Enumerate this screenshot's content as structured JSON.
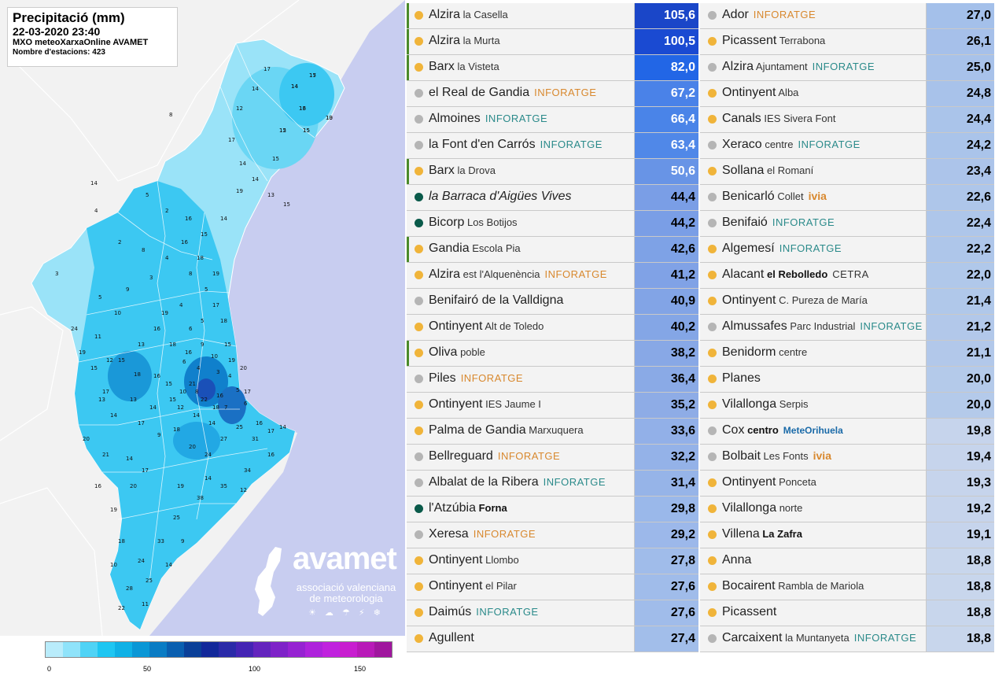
{
  "map": {
    "title": "Precipitació (mm)",
    "date": "22-03-2020 23:40",
    "source": "MXO meteoXarxaOnline AVAMET",
    "stations_count": "Nombre d'estacions: 423",
    "brand_name": "avamet",
    "brand_sub1": "associació valenciana",
    "brand_sub2": "de meteorologia",
    "brand_icons": "☀ ☁ ☂ ⚡ ❄",
    "legend_colors": [
      "#b9ecfb",
      "#8fe3fa",
      "#4fd3f6",
      "#1ec6f2",
      "#0fb1e6",
      "#0a97d6",
      "#0a7cc4",
      "#0a5fb0",
      "#0a3f98",
      "#12289a",
      "#2a2aa8",
      "#4424b4",
      "#6424be",
      "#7e22c8",
      "#9622d2",
      "#ae22dc",
      "#c022de",
      "#c81ed0",
      "#b81ab8",
      "#a0169e"
    ],
    "legend_ticks": [
      "0",
      "50",
      "100",
      "150"
    ],
    "values": [
      "17",
      "14",
      "16",
      "15",
      "15",
      "10",
      "15",
      "14",
      "15",
      "8",
      "14",
      "5",
      "2",
      "4",
      "2",
      "3",
      "5",
      "3",
      "4",
      "8",
      "4",
      "5",
      "5",
      "6",
      "9",
      "10",
      "6",
      "4",
      "3",
      "4",
      "5",
      "6",
      "7",
      "8",
      "10",
      "15",
      "16",
      "18",
      "15",
      "17",
      "14",
      "17",
      "9",
      "18",
      "20",
      "24",
      "27",
      "25",
      "31",
      "17",
      "14",
      "34",
      "35",
      "38",
      "25",
      "33",
      "24",
      "28",
      "25",
      "22",
      "20",
      "17",
      "19",
      "21",
      "19",
      "14",
      "12",
      "16",
      "9",
      "14",
      "18",
      "14",
      "14",
      "12",
      "18",
      "16",
      "13",
      "19",
      "16",
      "15",
      "24",
      "19",
      "15",
      "13",
      "20",
      "14",
      "16",
      "18",
      "10",
      "11",
      "14",
      "17",
      "12",
      "17",
      "14",
      "19",
      "13",
      "14",
      "15",
      "16",
      "17",
      "18",
      "19",
      "20",
      "21",
      "22",
      "16",
      "15",
      "14",
      "13",
      "12",
      "11",
      "10",
      "9",
      "8",
      "16",
      "18",
      "19",
      "17",
      "16",
      "15",
      "14",
      "13",
      "12",
      "15",
      "13"
    ]
  },
  "table": {
    "left": [
      {
        "name": "Alzira",
        "sub": "la Casella",
        "tag": "",
        "tag_color": "",
        "dot": "#f0b43a",
        "value": "105,6",
        "bg": "#1a46c8",
        "fg": "#ffffff",
        "accent": true,
        "italic": false,
        "sub_bold": false
      },
      {
        "name": "Alzira",
        "sub": "la Murta",
        "tag": "",
        "tag_color": "",
        "dot": "#f0b43a",
        "value": "100,5",
        "bg": "#1a4ad2",
        "fg": "#ffffff",
        "accent": true,
        "italic": false,
        "sub_bold": false
      },
      {
        "name": "Barx",
        "sub": "la Visteta",
        "tag": "",
        "tag_color": "",
        "dot": "#f0b43a",
        "value": "82,0",
        "bg": "#2266e6",
        "fg": "#ffffff",
        "accent": true,
        "italic": false,
        "sub_bold": false
      },
      {
        "name": "el Real de Gandia",
        "sub": "",
        "tag": "INFORATGE",
        "tag_color": "#d8882e",
        "dot": "#b5b5b5",
        "value": "67,2",
        "bg": "#4a82e8",
        "fg": "#ffffff",
        "accent": false,
        "italic": false,
        "sub_bold": false
      },
      {
        "name": "Almoines",
        "sub": "",
        "tag": "INFORATGE",
        "tag_color": "#2a8a8a",
        "dot": "#b5b5b5",
        "value": "66,4",
        "bg": "#4a84e8",
        "fg": "#ffffff",
        "accent": false,
        "italic": false,
        "sub_bold": false
      },
      {
        "name": "la Font d'en Carrós",
        "sub": "",
        "tag": "INFORATGE",
        "tag_color": "#2a8a8a",
        "dot": "#b5b5b5",
        "value": "63,4",
        "bg": "#5088e8",
        "fg": "#ffffff",
        "accent": false,
        "italic": false,
        "sub_bold": false
      },
      {
        "name": "Barx",
        "sub": "la Drova",
        "tag": "",
        "tag_color": "",
        "dot": "#f0b43a",
        "value": "50,6",
        "bg": "#6894e6",
        "fg": "#ffffff",
        "accent": true,
        "italic": false,
        "sub_bold": false
      },
      {
        "name": "la Barraca d'Aigües Vives",
        "sub": "",
        "tag": "",
        "tag_color": "",
        "dot": "#0a5a4a",
        "value": "44,4",
        "bg": "#7a9ee6",
        "fg": "#000000",
        "accent": false,
        "italic": true,
        "sub_bold": false
      },
      {
        "name": "Bicorp",
        "sub": "Los Botijos",
        "tag": "",
        "tag_color": "",
        "dot": "#0a5a4a",
        "value": "44,2",
        "bg": "#7a9ee6",
        "fg": "#000000",
        "accent": false,
        "italic": false,
        "sub_bold": false
      },
      {
        "name": "Gandia",
        "sub": "Escola Pia",
        "tag": "",
        "tag_color": "",
        "dot": "#f0b43a",
        "value": "42,6",
        "bg": "#7ea2e6",
        "fg": "#000000",
        "accent": true,
        "italic": false,
        "sub_bold": false
      },
      {
        "name": "Alzira",
        "sub": "est l'Alquenència",
        "tag": "INFORATGE",
        "tag_color": "#d8882e",
        "dot": "#f0b43a",
        "value": "41,2",
        "bg": "#80a2e6",
        "fg": "#000000",
        "accent": false,
        "italic": false,
        "sub_bold": false
      },
      {
        "name": "Benifairó de la Valldigna",
        "sub": "",
        "tag": "",
        "tag_color": "",
        "dot": "#b5b5b5",
        "value": "40,9",
        "bg": "#82a4e6",
        "fg": "#000000",
        "accent": false,
        "italic": false,
        "sub_bold": false
      },
      {
        "name": "Ontinyent",
        "sub": "Alt de Toledo",
        "tag": "",
        "tag_color": "",
        "dot": "#f0b43a",
        "value": "40,2",
        "bg": "#84a6e6",
        "fg": "#000000",
        "accent": false,
        "italic": false,
        "sub_bold": false
      },
      {
        "name": "Oliva",
        "sub": "poble",
        "tag": "",
        "tag_color": "",
        "dot": "#f0b43a",
        "value": "38,2",
        "bg": "#88a8e6",
        "fg": "#000000",
        "accent": true,
        "italic": false,
        "sub_bold": false
      },
      {
        "name": "Piles",
        "sub": "",
        "tag": "INFORATGE",
        "tag_color": "#d8882e",
        "dot": "#b5b5b5",
        "value": "36,4",
        "bg": "#8aaae6",
        "fg": "#000000",
        "accent": false,
        "italic": false,
        "sub_bold": false
      },
      {
        "name": "Ontinyent",
        "sub": "IES Jaume I",
        "tag": "",
        "tag_color": "",
        "dot": "#f0b43a",
        "value": "35,2",
        "bg": "#8eace6",
        "fg": "#000000",
        "accent": false,
        "italic": false,
        "sub_bold": false
      },
      {
        "name": "Palma de Gandia",
        "sub": "Marxuquera",
        "tag": "",
        "tag_color": "",
        "dot": "#f0b43a",
        "value": "33,6",
        "bg": "#92b0e8",
        "fg": "#000000",
        "accent": false,
        "italic": false,
        "sub_bold": false
      },
      {
        "name": "Bellreguard",
        "sub": "",
        "tag": "INFORATGE",
        "tag_color": "#d8882e",
        "dot": "#b5b5b5",
        "value": "32,2",
        "bg": "#94b2e8",
        "fg": "#000000",
        "accent": false,
        "italic": false,
        "sub_bold": false
      },
      {
        "name": "Albalat de la Ribera",
        "sub": "",
        "tag": "INFORATGE",
        "tag_color": "#2a8a8a",
        "dot": "#b5b5b5",
        "value": "31,4",
        "bg": "#96b4e8",
        "fg": "#000000",
        "accent": false,
        "italic": false,
        "sub_bold": false
      },
      {
        "name": "l'Atzúbia",
        "sub": "Forna",
        "tag": "",
        "tag_color": "",
        "dot": "#0a5a4a",
        "value": "29,8",
        "bg": "#9ab8ea",
        "fg": "#000000",
        "accent": false,
        "italic": false,
        "sub_bold": true
      },
      {
        "name": "Xeresa",
        "sub": "",
        "tag": "INFORATGE",
        "tag_color": "#d8882e",
        "dot": "#b5b5b5",
        "value": "29,2",
        "bg": "#9cb8ea",
        "fg": "#000000",
        "accent": false,
        "italic": false,
        "sub_bold": false
      },
      {
        "name": "Ontinyent",
        "sub": "Llombo",
        "tag": "",
        "tag_color": "",
        "dot": "#f0b43a",
        "value": "27,8",
        "bg": "#a0bcea",
        "fg": "#000000",
        "accent": false,
        "italic": false,
        "sub_bold": false
      },
      {
        "name": "Ontinyent",
        "sub": "el Pilar",
        "tag": "",
        "tag_color": "",
        "dot": "#f0b43a",
        "value": "27,6",
        "bg": "#a0bcea",
        "fg": "#000000",
        "accent": false,
        "italic": false,
        "sub_bold": false
      },
      {
        "name": "Daimús",
        "sub": "",
        "tag": "INFORATGE",
        "tag_color": "#2a8a8a",
        "dot": "#f0b43a",
        "value": "27,6",
        "bg": "#a0bcea",
        "fg": "#000000",
        "accent": false,
        "italic": false,
        "sub_bold": false
      },
      {
        "name": "Agullent",
        "sub": "",
        "tag": "",
        "tag_color": "",
        "dot": "#f0b43a",
        "value": "27,4",
        "bg": "#a2beea",
        "fg": "#000000",
        "accent": false,
        "italic": false,
        "sub_bold": false
      }
    ],
    "right": [
      {
        "name": "Ador",
        "sub": "",
        "tag": "INFORATGE",
        "tag_color": "#d8882e",
        "dot": "#b5b5b5",
        "value": "27,0",
        "bg": "#a4c0ea",
        "fg": "#000000",
        "accent": false,
        "italic": false,
        "sub_bold": false
      },
      {
        "name": "Picassent",
        "sub": "Terrabona",
        "tag": "",
        "tag_color": "",
        "dot": "#f0b43a",
        "value": "26,1",
        "bg": "#a6c0ea",
        "fg": "#000000",
        "accent": false,
        "italic": false,
        "sub_bold": false
      },
      {
        "name": "Alzira",
        "sub": "Ajuntament",
        "tag": "INFORATGE",
        "tag_color": "#2a8a8a",
        "dot": "#b5b5b5",
        "value": "25,0",
        "bg": "#a8c2ea",
        "fg": "#000000",
        "accent": false,
        "italic": false,
        "sub_bold": false
      },
      {
        "name": "Ontinyent",
        "sub": "Alba",
        "tag": "",
        "tag_color": "",
        "dot": "#f0b43a",
        "value": "24,8",
        "bg": "#a8c2ea",
        "fg": "#000000",
        "accent": false,
        "italic": false,
        "sub_bold": false
      },
      {
        "name": "Canals",
        "sub": "IES Sivera Font",
        "tag": "",
        "tag_color": "",
        "dot": "#f0b43a",
        "value": "24,4",
        "bg": "#aac4ea",
        "fg": "#000000",
        "accent": false,
        "italic": false,
        "sub_bold": false
      },
      {
        "name": "Xeraco",
        "sub": "centre",
        "tag": "INFORATGE",
        "tag_color": "#2a8a8a",
        "dot": "#b5b5b5",
        "value": "24,2",
        "bg": "#aac4ea",
        "fg": "#000000",
        "accent": false,
        "italic": false,
        "sub_bold": false
      },
      {
        "name": "Sollana",
        "sub": "el Romaní",
        "tag": "",
        "tag_color": "",
        "dot": "#f0b43a",
        "value": "23,4",
        "bg": "#acc4ea",
        "fg": "#000000",
        "accent": false,
        "italic": false,
        "sub_bold": false
      },
      {
        "name": "Benicarló",
        "sub": "Collet",
        "tag": "ivia",
        "tag_color": "#d8882e",
        "dot": "#b5b5b5",
        "value": "22,6",
        "bg": "#aec6ea",
        "fg": "#000000",
        "accent": false,
        "italic": false,
        "sub_bold": false
      },
      {
        "name": "Benifaió",
        "sub": "",
        "tag": "INFORATGE",
        "tag_color": "#2a8a8a",
        "dot": "#b5b5b5",
        "value": "22,4",
        "bg": "#aec6ea",
        "fg": "#000000",
        "accent": false,
        "italic": false,
        "sub_bold": false
      },
      {
        "name": "Algemesí",
        "sub": "",
        "tag": "INFORATGE",
        "tag_color": "#2a8a8a",
        "dot": "#f0b43a",
        "value": "22,2",
        "bg": "#aec6ea",
        "fg": "#000000",
        "accent": false,
        "italic": false,
        "sub_bold": false
      },
      {
        "name": "Alacant",
        "sub": "el Rebolledo",
        "tag": "CETRA",
        "tag_color": "#333333",
        "dot": "#f0b43a",
        "value": "22,0",
        "bg": "#b0c8ea",
        "fg": "#000000",
        "accent": false,
        "italic": false,
        "sub_bold": true
      },
      {
        "name": "Ontinyent",
        "sub": "C. Pureza de María",
        "tag": "",
        "tag_color": "",
        "dot": "#f0b43a",
        "value": "21,4",
        "bg": "#b0c8ea",
        "fg": "#000000",
        "accent": false,
        "italic": false,
        "sub_bold": false
      },
      {
        "name": "Almussafes",
        "sub": "Parc Industrial",
        "tag": "INFORATGE",
        "tag_color": "#2a8a8a",
        "dot": "#b5b5b5",
        "value": "21,2",
        "bg": "#b2c8ea",
        "fg": "#000000",
        "accent": false,
        "italic": false,
        "sub_bold": false
      },
      {
        "name": "Benidorm",
        "sub": "centre",
        "tag": "",
        "tag_color": "",
        "dot": "#f0b43a",
        "value": "21,1",
        "bg": "#b2c8ea",
        "fg": "#000000",
        "accent": false,
        "italic": false,
        "sub_bold": false
      },
      {
        "name": "Planes",
        "sub": "",
        "tag": "",
        "tag_color": "",
        "dot": "#f0b43a",
        "value": "20,0",
        "bg": "#b4caea",
        "fg": "#000000",
        "accent": false,
        "italic": false,
        "sub_bold": false
      },
      {
        "name": "Vilallonga",
        "sub": "Serpis",
        "tag": "",
        "tag_color": "",
        "dot": "#f0b43a",
        "value": "20,0",
        "bg": "#b4caea",
        "fg": "#000000",
        "accent": false,
        "italic": false,
        "sub_bold": false
      },
      {
        "name": "Cox",
        "sub": "centro",
        "tag": "MeteOrihuela",
        "tag_color": "#1a6aa8",
        "dot": "#b5b5b5",
        "value": "19,8",
        "bg": "#c6d4ec",
        "fg": "#000000",
        "accent": false,
        "italic": false,
        "sub_bold": true
      },
      {
        "name": "Bolbait",
        "sub": "Les Fonts",
        "tag": "ivia",
        "tag_color": "#d8882e",
        "dot": "#b5b5b5",
        "value": "19,4",
        "bg": "#c6d4ec",
        "fg": "#000000",
        "accent": false,
        "italic": false,
        "sub_bold": false
      },
      {
        "name": "Ontinyent",
        "sub": "Ponceta",
        "tag": "",
        "tag_color": "",
        "dot": "#f0b43a",
        "value": "19,3",
        "bg": "#c6d4ec",
        "fg": "#000000",
        "accent": false,
        "italic": false,
        "sub_bold": false
      },
      {
        "name": "Vilallonga",
        "sub": "norte",
        "tag": "",
        "tag_color": "",
        "dot": "#f0b43a",
        "value": "19,2",
        "bg": "#c6d4ec",
        "fg": "#000000",
        "accent": false,
        "italic": false,
        "sub_bold": false
      },
      {
        "name": "Villena",
        "sub": "La Zafra",
        "tag": "",
        "tag_color": "",
        "dot": "#f0b43a",
        "value": "19,1",
        "bg": "#c6d4ec",
        "fg": "#000000",
        "accent": false,
        "italic": false,
        "sub_bold": true
      },
      {
        "name": "Anna",
        "sub": "",
        "tag": "",
        "tag_color": "",
        "dot": "#f0b43a",
        "value": "18,8",
        "bg": "#c8d6ec",
        "fg": "#000000",
        "accent": false,
        "italic": false,
        "sub_bold": false
      },
      {
        "name": "Bocairent",
        "sub": "Rambla de Mariola",
        "tag": "",
        "tag_color": "",
        "dot": "#f0b43a",
        "value": "18,8",
        "bg": "#c8d6ec",
        "fg": "#000000",
        "accent": false,
        "italic": false,
        "sub_bold": false
      },
      {
        "name": "Picassent",
        "sub": "",
        "tag": "",
        "tag_color": "",
        "dot": "#f0b43a",
        "value": "18,8",
        "bg": "#c8d6ec",
        "fg": "#000000",
        "accent": false,
        "italic": false,
        "sub_bold": false
      },
      {
        "name": "Carcaixent",
        "sub": "la Muntanyeta",
        "tag": "INFORATGE",
        "tag_color": "#2a8a8a",
        "dot": "#b5b5b5",
        "value": "18,8",
        "bg": "#c8d6ec",
        "fg": "#000000",
        "accent": false,
        "italic": false,
        "sub_bold": false
      }
    ]
  }
}
